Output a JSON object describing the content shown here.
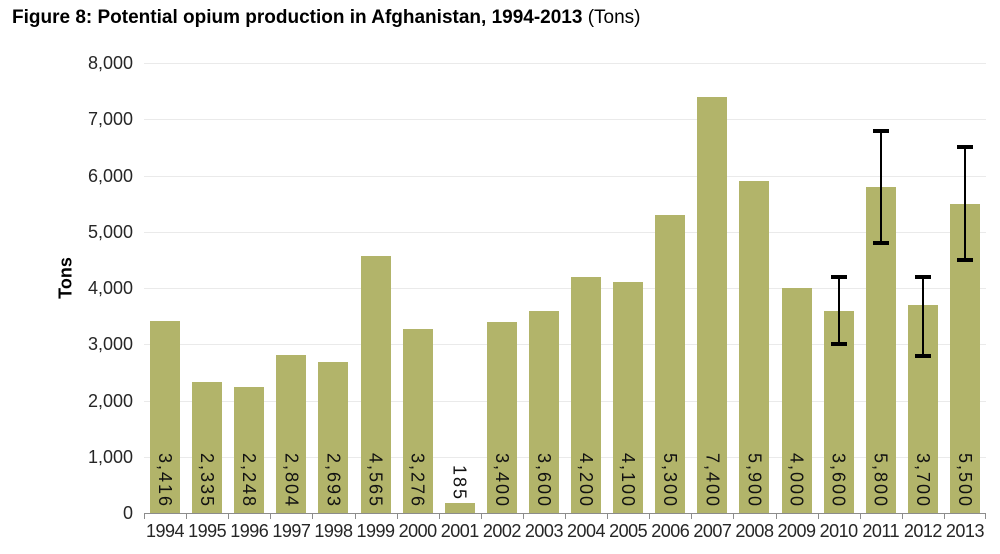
{
  "figure": {
    "title_main": "Figure 8: Potential opium production in Afghanistan, 1994-2013",
    "title_unit": " (Tons)"
  },
  "chart_data": {
    "type": "bar",
    "title": "Figure 8: Potential opium production in Afghanistan, 1994-2013 (Tons)",
    "xlabel": "",
    "ylabel": "Tons",
    "ylim": [
      0,
      8000
    ],
    "ytick_step": 1000,
    "grid": "horizontal",
    "legend": "none",
    "categories": [
      "1994",
      "1995",
      "1996",
      "1997",
      "1998",
      "1999",
      "2000",
      "2001",
      "2002",
      "2003",
      "2004",
      "2005",
      "2006",
      "2007",
      "2008",
      "2009",
      "2010",
      "2011",
      "2012",
      "2013"
    ],
    "values": [
      3416,
      2335,
      2248,
      2804,
      2693,
      4565,
      3276,
      185,
      3400,
      3600,
      4200,
      4100,
      5300,
      7400,
      5900,
      4000,
      3600,
      5800,
      3700,
      5500
    ],
    "bar_labels": [
      "3,416",
      "2,335",
      "2,248",
      "2,804",
      "2,693",
      "4,565",
      "3,276",
      "185",
      "3,400",
      "3,600",
      "4,200",
      "4,100",
      "5,300",
      "7,400",
      "5,900",
      "4,000",
      "3,600",
      "5,800",
      "3,700",
      "5,500"
    ],
    "error_bars": [
      {
        "category": "2010",
        "low": 3000,
        "high": 4200
      },
      {
        "category": "2011",
        "low": 4800,
        "high": 6800
      },
      {
        "category": "2012",
        "low": 2800,
        "high": 4200
      },
      {
        "category": "2013",
        "low": 4500,
        "high": 6500
      }
    ],
    "colors": {
      "bar": "#b2b46a",
      "gridline": "#eaeaea",
      "axis_line": "#8c8c8c",
      "tick_text": "#262626",
      "bar_label_text": "#111111",
      "error_bar": "#000000",
      "background": "#ffffff"
    }
  }
}
